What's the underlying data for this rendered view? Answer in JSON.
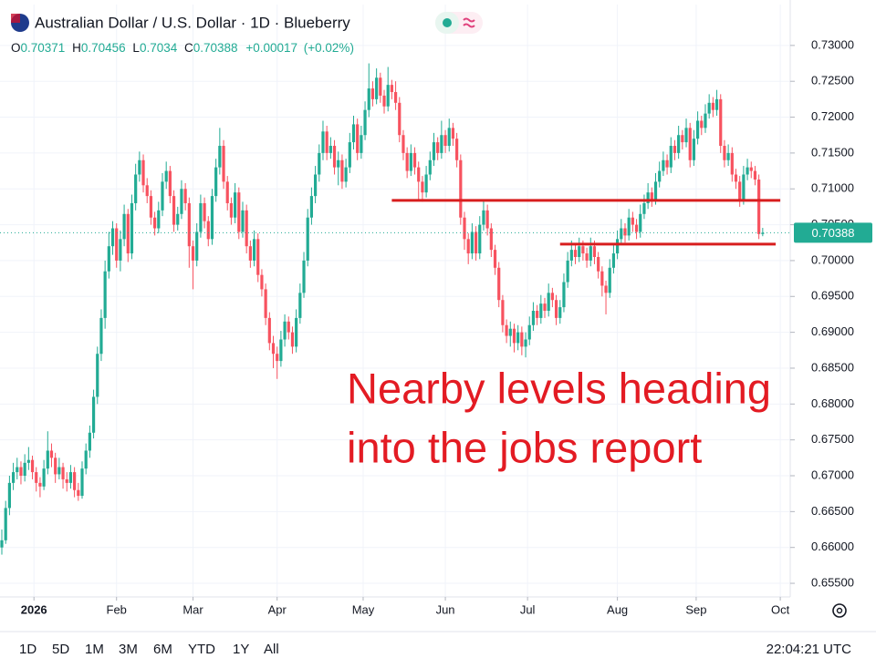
{
  "chart_data": {
    "type": "candlestick",
    "title": "Australian Dollar / U.S. Dollar · 1D · Blueberry",
    "legend_labels": [
      "O",
      "H",
      "L",
      "C"
    ],
    "change": "+0.00017",
    "change_percent": "(+0.02%)",
    "up_color": "#22ab94",
    "down_color": "#f7525f",
    "grid": true,
    "xlim": [
      -0.48,
      206.2
    ],
    "ylim": [
      0.6531,
      0.7357
    ],
    "xticks": [
      {
        "value": 8.4,
        "label": "2026"
      },
      {
        "value": 30,
        "label": "Feb"
      },
      {
        "value": 50,
        "label": "Mar"
      },
      {
        "value": 72,
        "label": "Apr"
      },
      {
        "value": 94.5,
        "label": "May"
      },
      {
        "value": 116,
        "label": "Jun"
      },
      {
        "value": 137.5,
        "label": "Jul"
      },
      {
        "value": 161,
        "label": "Aug"
      },
      {
        "value": 181.6,
        "label": "Sep"
      },
      {
        "value": 203.6,
        "label": "Oct"
      }
    ],
    "yticks": [
      {
        "value": 0.655,
        "label": "0.65500"
      },
      {
        "value": 0.66,
        "label": "0.66000"
      },
      {
        "value": 0.665,
        "label": "0.66500"
      },
      {
        "value": 0.67,
        "label": "0.67000"
      },
      {
        "value": 0.675,
        "label": "0.67500"
      },
      {
        "value": 0.68,
        "label": "0.68000"
      },
      {
        "value": 0.685,
        "label": "0.68500"
      },
      {
        "value": 0.69,
        "label": "0.69000"
      },
      {
        "value": 0.695,
        "label": "0.69500"
      },
      {
        "value": 0.7,
        "label": "0.70000"
      },
      {
        "value": 0.705,
        "label": "0.70500"
      },
      {
        "value": 0.71,
        "label": "0.71000"
      },
      {
        "value": 0.715,
        "label": "0.71500"
      },
      {
        "value": 0.72,
        "label": "0.72000"
      },
      {
        "value": 0.725,
        "label": "0.72500"
      },
      {
        "value": 0.73,
        "label": "0.73000"
      }
    ],
    "levels": [
      {
        "value": 0.7084,
        "from": 102,
        "to": 203.6,
        "color": "#d81e1e"
      },
      {
        "value": 0.7023,
        "from": 146,
        "to": 202.4,
        "color": "#d81e1e"
      }
    ],
    "annotation": [
      "Nearby levels heading",
      "into the jobs report"
    ],
    "ohlc": [
      [
        0.66,
        0.6625,
        0.659,
        0.661
      ],
      [
        0.661,
        0.6665,
        0.6605,
        0.6655
      ],
      [
        0.6655,
        0.67,
        0.6645,
        0.669
      ],
      [
        0.669,
        0.6718,
        0.668,
        0.6705
      ],
      [
        0.6705,
        0.6725,
        0.6695,
        0.6712
      ],
      [
        0.6712,
        0.672,
        0.6688,
        0.67
      ],
      [
        0.67,
        0.673,
        0.6692,
        0.6718
      ],
      [
        0.6718,
        0.674,
        0.6708,
        0.6722
      ],
      [
        0.6722,
        0.6728,
        0.6695,
        0.6705
      ],
      [
        0.6705,
        0.6712,
        0.6678,
        0.669
      ],
      [
        0.669,
        0.6698,
        0.667,
        0.6685
      ],
      [
        0.6685,
        0.6722,
        0.668,
        0.671
      ],
      [
        0.671,
        0.6762,
        0.6702,
        0.6735
      ],
      [
        0.6735,
        0.6745,
        0.6712,
        0.6725
      ],
      [
        0.6725,
        0.6732,
        0.669,
        0.6702
      ],
      [
        0.6702,
        0.6725,
        0.6695,
        0.6712
      ],
      [
        0.6712,
        0.6718,
        0.6682,
        0.6695
      ],
      [
        0.6695,
        0.6705,
        0.6678,
        0.669
      ],
      [
        0.669,
        0.6715,
        0.6682,
        0.6705
      ],
      [
        0.6705,
        0.6712,
        0.667,
        0.668
      ],
      [
        0.668,
        0.669,
        0.6665,
        0.6672
      ],
      [
        0.6672,
        0.672,
        0.6668,
        0.671
      ],
      [
        0.671,
        0.6745,
        0.6702,
        0.6735
      ],
      [
        0.6735,
        0.677,
        0.6725,
        0.676
      ],
      [
        0.676,
        0.682,
        0.6752,
        0.681
      ],
      [
        0.681,
        0.688,
        0.68,
        0.687
      ],
      [
        0.687,
        0.6932,
        0.686,
        0.692
      ],
      [
        0.692,
        0.7,
        0.6905,
        0.6985
      ],
      [
        0.6985,
        0.704,
        0.6975,
        0.702
      ],
      [
        0.702,
        0.7055,
        0.7008,
        0.7045
      ],
      [
        0.7045,
        0.7052,
        0.699,
        0.7
      ],
      [
        0.7,
        0.7042,
        0.6985,
        0.703
      ],
      [
        0.703,
        0.7078,
        0.702,
        0.7065
      ],
      [
        0.7065,
        0.7072,
        0.6998,
        0.701
      ],
      [
        0.701,
        0.7092,
        0.7002,
        0.708
      ],
      [
        0.708,
        0.7135,
        0.707,
        0.712
      ],
      [
        0.712,
        0.7152,
        0.711,
        0.714
      ],
      [
        0.714,
        0.7148,
        0.7095,
        0.7105
      ],
      [
        0.7105,
        0.7115,
        0.708,
        0.709
      ],
      [
        0.709,
        0.7098,
        0.705,
        0.706
      ],
      [
        0.706,
        0.7068,
        0.7035,
        0.7045
      ],
      [
        0.7045,
        0.7082,
        0.7038,
        0.707
      ],
      [
        0.707,
        0.7122,
        0.7062,
        0.711
      ],
      [
        0.711,
        0.7138,
        0.71,
        0.7125
      ],
      [
        0.7125,
        0.7132,
        0.708,
        0.709
      ],
      [
        0.709,
        0.7098,
        0.704,
        0.705
      ],
      [
        0.705,
        0.7075,
        0.7042,
        0.7065
      ],
      [
        0.7065,
        0.7112,
        0.7058,
        0.71
      ],
      [
        0.71,
        0.7108,
        0.707,
        0.708
      ],
      [
        0.708,
        0.7088,
        0.699,
        0.702
      ],
      [
        0.702,
        0.7028,
        0.696,
        0.7
      ],
      [
        0.7,
        0.7052,
        0.6992,
        0.704
      ],
      [
        0.704,
        0.7092,
        0.7032,
        0.708
      ],
      [
        0.708,
        0.7088,
        0.7045,
        0.7055
      ],
      [
        0.7055,
        0.7062,
        0.702,
        0.703
      ],
      [
        0.703,
        0.71,
        0.7022,
        0.709
      ],
      [
        0.709,
        0.7142,
        0.7082,
        0.713
      ],
      [
        0.713,
        0.7185,
        0.712,
        0.716
      ],
      [
        0.716,
        0.7168,
        0.71,
        0.711
      ],
      [
        0.711,
        0.7118,
        0.707,
        0.708
      ],
      [
        0.708,
        0.7088,
        0.705,
        0.706
      ],
      [
        0.706,
        0.7108,
        0.7052,
        0.7095
      ],
      [
        0.7095,
        0.7102,
        0.703,
        0.704
      ],
      [
        0.704,
        0.7082,
        0.7032,
        0.707
      ],
      [
        0.707,
        0.7078,
        0.701,
        0.702
      ],
      [
        0.702,
        0.7028,
        0.699,
        0.7
      ],
      [
        0.7,
        0.7042,
        0.6992,
        0.703
      ],
      [
        0.703,
        0.7038,
        0.697,
        0.698
      ],
      [
        0.698,
        0.6988,
        0.695,
        0.696
      ],
      [
        0.696,
        0.6968,
        0.691,
        0.692
      ],
      [
        0.692,
        0.6928,
        0.6875,
        0.6885
      ],
      [
        0.6885,
        0.6895,
        0.685,
        0.687
      ],
      [
        0.687,
        0.688,
        0.6835,
        0.686
      ],
      [
        0.686,
        0.6902,
        0.6852,
        0.689
      ],
      [
        0.689,
        0.6925,
        0.688,
        0.6915
      ],
      [
        0.6915,
        0.6922,
        0.689,
        0.69
      ],
      [
        0.69,
        0.6908,
        0.687,
        0.688
      ],
      [
        0.688,
        0.6932,
        0.6872,
        0.692
      ],
      [
        0.692,
        0.6968,
        0.6912,
        0.6955
      ],
      [
        0.6955,
        0.7012,
        0.6948,
        0.7
      ],
      [
        0.7,
        0.7072,
        0.6992,
        0.706
      ],
      [
        0.706,
        0.7102,
        0.705,
        0.709
      ],
      [
        0.709,
        0.7132,
        0.708,
        0.712
      ],
      [
        0.712,
        0.7162,
        0.711,
        0.715
      ],
      [
        0.715,
        0.7195,
        0.714,
        0.718
      ],
      [
        0.718,
        0.7188,
        0.714,
        0.715
      ],
      [
        0.715,
        0.7172,
        0.7142,
        0.716
      ],
      [
        0.716,
        0.7168,
        0.712,
        0.713
      ],
      [
        0.713,
        0.7152,
        0.7105,
        0.714
      ],
      [
        0.714,
        0.7148,
        0.71,
        0.711
      ],
      [
        0.711,
        0.7142,
        0.7102,
        0.713
      ],
      [
        0.713,
        0.7178,
        0.7122,
        0.7165
      ],
      [
        0.7165,
        0.7202,
        0.7155,
        0.719
      ],
      [
        0.719,
        0.7198,
        0.714,
        0.715
      ],
      [
        0.715,
        0.7188,
        0.7142,
        0.7175
      ],
      [
        0.7175,
        0.7222,
        0.7168,
        0.721
      ],
      [
        0.721,
        0.7275,
        0.72,
        0.724
      ],
      [
        0.724,
        0.725,
        0.7215,
        0.7225
      ],
      [
        0.7225,
        0.7268,
        0.7218,
        0.7255
      ],
      [
        0.7255,
        0.7262,
        0.722,
        0.723
      ],
      [
        0.723,
        0.7238,
        0.7205,
        0.7215
      ],
      [
        0.7215,
        0.727,
        0.7208,
        0.7245
      ],
      [
        0.7245,
        0.7252,
        0.7225,
        0.7235
      ],
      [
        0.7235,
        0.725,
        0.721,
        0.722
      ],
      [
        0.722,
        0.7228,
        0.7165,
        0.7175
      ],
      [
        0.7175,
        0.7182,
        0.714,
        0.715
      ],
      [
        0.715,
        0.7158,
        0.7115,
        0.7125
      ],
      [
        0.7125,
        0.7162,
        0.7118,
        0.715
      ],
      [
        0.715,
        0.7158,
        0.712,
        0.713
      ],
      [
        0.713,
        0.7138,
        0.7085,
        0.711
      ],
      [
        0.711,
        0.7118,
        0.7082,
        0.7095
      ],
      [
        0.7095,
        0.7132,
        0.7088,
        0.712
      ],
      [
        0.712,
        0.7152,
        0.7112,
        0.714
      ],
      [
        0.714,
        0.7178,
        0.7132,
        0.7165
      ],
      [
        0.7165,
        0.7172,
        0.714,
        0.715
      ],
      [
        0.715,
        0.7195,
        0.7142,
        0.7175
      ],
      [
        0.7175,
        0.7182,
        0.715,
        0.716
      ],
      [
        0.716,
        0.7198,
        0.7152,
        0.7185
      ],
      [
        0.7185,
        0.7192,
        0.716,
        0.717
      ],
      [
        0.717,
        0.7178,
        0.713,
        0.714
      ],
      [
        0.714,
        0.7148,
        0.705,
        0.706
      ],
      [
        0.706,
        0.7068,
        0.7015,
        0.703
      ],
      [
        0.703,
        0.7038,
        0.6995,
        0.701
      ],
      [
        0.701,
        0.7052,
        0.7002,
        0.704
      ],
      [
        0.704,
        0.7048,
        0.7,
        0.701
      ],
      [
        0.701,
        0.7062,
        0.7002,
        0.705
      ],
      [
        0.705,
        0.7085,
        0.7042,
        0.707
      ],
      [
        0.707,
        0.7078,
        0.7035,
        0.7045
      ],
      [
        0.7045,
        0.7052,
        0.7005,
        0.7015
      ],
      [
        0.7015,
        0.7022,
        0.698,
        0.699
      ],
      [
        0.699,
        0.6998,
        0.6935,
        0.6945
      ],
      [
        0.6945,
        0.6952,
        0.69,
        0.691
      ],
      [
        0.691,
        0.6918,
        0.6885,
        0.6895
      ],
      [
        0.6895,
        0.6915,
        0.688,
        0.6905
      ],
      [
        0.6905,
        0.6912,
        0.6872,
        0.6885
      ],
      [
        0.6885,
        0.691,
        0.6875,
        0.69
      ],
      [
        0.69,
        0.6908,
        0.6868,
        0.688
      ],
      [
        0.688,
        0.69,
        0.6865,
        0.689
      ],
      [
        0.689,
        0.6922,
        0.6882,
        0.691
      ],
      [
        0.691,
        0.6942,
        0.6902,
        0.693
      ],
      [
        0.693,
        0.6938,
        0.691,
        0.692
      ],
      [
        0.692,
        0.6952,
        0.6912,
        0.694
      ],
      [
        0.694,
        0.6948,
        0.692,
        0.693
      ],
      [
        0.693,
        0.6968,
        0.6922,
        0.6955
      ],
      [
        0.6955,
        0.6962,
        0.6935,
        0.6945
      ],
      [
        0.6945,
        0.6952,
        0.691,
        0.692
      ],
      [
        0.692,
        0.6945,
        0.6912,
        0.6935
      ],
      [
        0.6935,
        0.6982,
        0.6928,
        0.697
      ],
      [
        0.697,
        0.7012,
        0.6962,
        0.7
      ],
      [
        0.7,
        0.7028,
        0.6992,
        0.7015
      ],
      [
        0.7015,
        0.7022,
        0.6995,
        0.7005
      ],
      [
        0.7005,
        0.7032,
        0.6998,
        0.702
      ],
      [
        0.702,
        0.7028,
        0.7,
        0.701
      ],
      [
        0.701,
        0.7018,
        0.699,
        0.7
      ],
      [
        0.7,
        0.7032,
        0.6992,
        0.702
      ],
      [
        0.702,
        0.7028,
        0.6995,
        0.7005
      ],
      [
        0.7005,
        0.7012,
        0.6975,
        0.6985
      ],
      [
        0.6985,
        0.6992,
        0.695,
        0.6965
      ],
      [
        0.6965,
        0.6972,
        0.6925,
        0.6955
      ],
      [
        0.6955,
        0.7002,
        0.6948,
        0.699
      ],
      [
        0.699,
        0.7022,
        0.6982,
        0.701
      ],
      [
        0.701,
        0.7042,
        0.7002,
        0.703
      ],
      [
        0.703,
        0.7058,
        0.7022,
        0.7045
      ],
      [
        0.7045,
        0.7052,
        0.7025,
        0.7035
      ],
      [
        0.7035,
        0.7072,
        0.7028,
        0.706
      ],
      [
        0.706,
        0.7068,
        0.704,
        0.705
      ],
      [
        0.705,
        0.7058,
        0.703,
        0.704
      ],
      [
        0.704,
        0.7078,
        0.7032,
        0.7065
      ],
      [
        0.7065,
        0.7092,
        0.7058,
        0.708
      ],
      [
        0.708,
        0.7108,
        0.7072,
        0.7095
      ],
      [
        0.7095,
        0.7102,
        0.7075,
        0.7085
      ],
      [
        0.7085,
        0.7122,
        0.7078,
        0.711
      ],
      [
        0.711,
        0.7138,
        0.7102,
        0.7125
      ],
      [
        0.7125,
        0.7152,
        0.7118,
        0.714
      ],
      [
        0.714,
        0.7148,
        0.712,
        0.713
      ],
      [
        0.713,
        0.7172,
        0.7122,
        0.716
      ],
      [
        0.716,
        0.7168,
        0.714,
        0.715
      ],
      [
        0.715,
        0.7188,
        0.7142,
        0.7175
      ],
      [
        0.7175,
        0.7182,
        0.7155,
        0.7165
      ],
      [
        0.7165,
        0.7198,
        0.7158,
        0.7185
      ],
      [
        0.7185,
        0.7192,
        0.713,
        0.714
      ],
      [
        0.714,
        0.7182,
        0.7132,
        0.717
      ],
      [
        0.717,
        0.7208,
        0.7162,
        0.7195
      ],
      [
        0.7195,
        0.7202,
        0.7175,
        0.7185
      ],
      [
        0.7185,
        0.7218,
        0.7178,
        0.7205
      ],
      [
        0.7205,
        0.7232,
        0.7198,
        0.722
      ],
      [
        0.722,
        0.7228,
        0.72,
        0.721
      ],
      [
        0.721,
        0.7238,
        0.7202,
        0.7225
      ],
      [
        0.7225,
        0.7232,
        0.715,
        0.716
      ],
      [
        0.716,
        0.7168,
        0.713,
        0.714
      ],
      [
        0.714,
        0.7162,
        0.7132,
        0.715
      ],
      [
        0.715,
        0.7158,
        0.711,
        0.712
      ],
      [
        0.712,
        0.7128,
        0.71,
        0.711
      ],
      [
        0.711,
        0.7118,
        0.7075,
        0.7085
      ],
      [
        0.7085,
        0.7132,
        0.7078,
        0.712
      ],
      [
        0.712,
        0.7142,
        0.7112,
        0.713
      ],
      [
        0.713,
        0.7138,
        0.7115,
        0.7125
      ],
      [
        0.7125,
        0.7132,
        0.7105,
        0.7113
      ],
      [
        0.7113,
        0.712,
        0.703,
        0.7037
      ],
      [
        0.70371,
        0.70456,
        0.7034,
        0.70388
      ]
    ]
  },
  "toolbar": {
    "ranges": [
      "1D",
      "5D",
      "1M",
      "3M",
      "6M",
      "YTD",
      "1Y",
      "All"
    ],
    "time": "22:04:21 UTC"
  }
}
